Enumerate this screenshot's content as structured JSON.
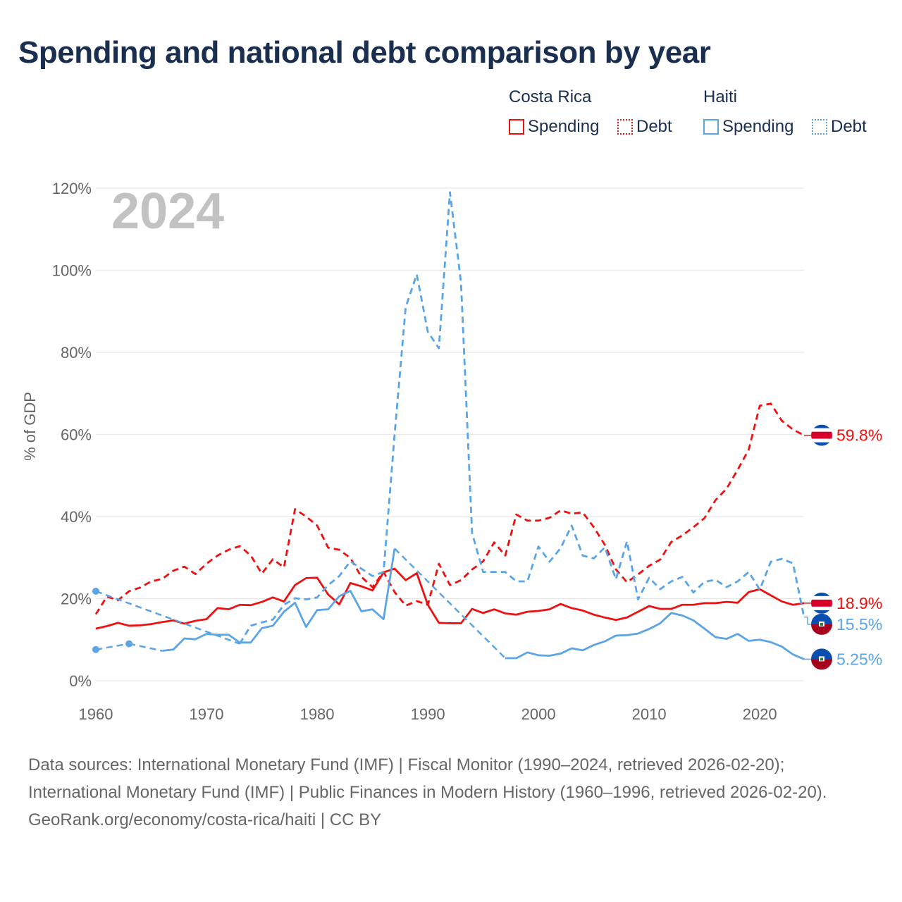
{
  "title": "Spending and national debt comparison by year",
  "legend": {
    "groups": [
      {
        "country": "Costa Rica",
        "items": [
          {
            "label": "Spending",
            "style": "solid"
          },
          {
            "label": "Debt",
            "style": "dotted"
          }
        ],
        "color": "#ee1111"
      },
      {
        "country": "Haiti",
        "items": [
          {
            "label": "Spending",
            "style": "solid"
          },
          {
            "label": "Debt",
            "style": "dotted"
          }
        ],
        "color": "#5ba4e6"
      }
    ]
  },
  "footer": {
    "sources": "Data sources: International Monetary Fund (IMF) | Fiscal Monitor (1990–2024, retrieved 2026-02-20); International Monetary Fund (IMF) | Public Finances in Modern History (1960–1996, retrieved 2026-02-20).",
    "credit": "GeoRank.org/economy/costa-rica/haiti | CC BY"
  },
  "chart_data": {
    "type": "line",
    "title": "Spending and national debt comparison by year",
    "year_label": "2024",
    "xlabel": "",
    "ylabel": "% of GDP",
    "xlim": [
      1960,
      2024
    ],
    "ylim": [
      0,
      120
    ],
    "x_ticks": [
      "1960",
      "1970",
      "1980",
      "1990",
      "2000",
      "2010",
      "2020"
    ],
    "y_ticks": [
      "0%",
      "20%",
      "40%",
      "60%",
      "80%",
      "100%",
      "120%"
    ],
    "grid": true,
    "legend_position": "top-right",
    "x_start": 1960,
    "series": [
      {
        "name": "Costa Rica Spending",
        "country": "Costa Rica",
        "kind": "Spending",
        "color": "#ee1111",
        "dash": false,
        "end_label": "18.9%",
        "values": [
          12.7,
          13.3,
          14.1,
          13.4,
          13.5,
          13.8,
          14.3,
          14.7,
          13.9,
          14.6,
          15.0,
          17.7,
          17.4,
          18.5,
          18.4,
          19.2,
          20.3,
          19.3,
          23.3,
          25.0,
          25.1,
          21.0,
          18.6,
          23.8,
          23.0,
          22.0,
          26.4,
          27.3,
          24.5,
          26.2,
          18.5,
          14.1,
          14.0,
          14.0,
          17.5,
          16.5,
          17.4,
          16.4,
          16.1,
          16.8,
          17.0,
          17.4,
          18.7,
          17.7,
          17.1,
          16.1,
          15.4,
          14.8,
          15.4,
          16.8,
          18.2,
          17.5,
          17.5,
          18.5,
          18.5,
          18.9,
          18.9,
          19.2,
          19.0,
          21.6,
          22.3,
          20.8,
          19.3,
          18.5,
          18.9
        ]
      },
      {
        "name": "Costa Rica Debt",
        "country": "Costa Rica",
        "kind": "Debt",
        "color": "#ee1111",
        "dash": true,
        "end_label": "59.8%",
        "values": [
          16.2,
          20.5,
          19.6,
          21.8,
          22.7,
          24.2,
          24.8,
          26.8,
          27.8,
          26.0,
          28.5,
          30.5,
          31.9,
          32.8,
          30.5,
          26.1,
          29.6,
          27.6,
          41.8,
          40.0,
          37.8,
          32.4,
          31.9,
          29.9,
          25.3,
          22.8,
          26.5,
          21.6,
          18.3,
          19.4,
          18.5,
          28.5,
          23.3,
          24.5,
          27.1,
          29.1,
          33.7,
          30.5,
          40.5,
          39.0,
          39.0,
          39.7,
          41.5,
          40.7,
          41.0,
          37.4,
          33.1,
          27.1,
          24.0,
          25.9,
          28.0,
          29.5,
          33.8,
          35.4,
          37.4,
          39.6,
          44.0,
          46.8,
          51.4,
          56.3,
          67.0,
          67.5,
          63.3,
          61.2,
          59.8
        ]
      },
      {
        "name": "Haiti Spending",
        "country": "Haiti",
        "kind": "Spending",
        "color": "#5ba4e6",
        "dash": false,
        "end_label": "5.25%",
        "values": [
          7.6,
          null,
          null,
          9.0,
          null,
          null,
          7.3,
          7.6,
          10.3,
          10.1,
          11.4,
          11.2,
          11.2,
          9.3,
          9.3,
          12.8,
          13.4,
          16.8,
          19.0,
          13.1,
          17.2,
          17.4,
          20.6,
          21.9,
          16.9,
          17.4,
          15.0,
          32.2,
          null,
          null,
          null,
          null,
          null,
          null,
          null,
          null,
          null,
          5.5,
          5.5,
          6.9,
          6.2,
          6.1,
          6.6,
          7.9,
          7.4,
          8.7,
          9.6,
          11.0,
          11.1,
          11.5,
          12.6,
          14.0,
          16.5,
          15.9,
          14.7,
          12.7,
          10.6,
          10.2,
          11.4,
          9.7,
          10.0,
          9.4,
          8.3,
          6.4,
          5.25
        ]
      },
      {
        "name": "Haiti Debt",
        "country": "Haiti",
        "kind": "Debt",
        "color": "#5ba4e6",
        "dash": true,
        "end_label": "15.5%",
        "values": [
          21.8,
          null,
          null,
          null,
          null,
          null,
          null,
          null,
          null,
          null,
          null,
          null,
          null,
          9.0,
          13.4,
          14.2,
          14.9,
          18.5,
          20.1,
          19.8,
          20.3,
          23.3,
          25.5,
          29.1,
          27.3,
          25.5,
          26.5,
          60.0,
          91.0,
          99.0,
          85.0,
          81.0,
          119.0,
          97.0,
          36.0,
          26.5,
          26.5,
          26.5,
          24.2,
          24.2,
          32.7,
          29.0,
          32.3,
          37.8,
          30.5,
          29.8,
          32.5,
          24.7,
          34.0,
          19.8,
          25.1,
          22.3,
          24.2,
          25.3,
          21.5,
          24.1,
          24.6,
          22.8,
          24.2,
          26.5,
          22.2,
          29.0,
          29.7,
          28.6,
          15.5
        ]
      }
    ]
  }
}
